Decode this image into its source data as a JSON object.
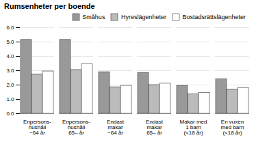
{
  "chart_data": {
    "type": "bar",
    "title": "Rumsenheter per boende",
    "categories": [
      "Enpersons-\nhushåll\n−64 år",
      "Enpersons-\nhushåll\n65– år",
      "Endast\nmakar\n−64 år",
      "Endast\nmakar\n65– år",
      "Makar med\n1 barn\n(<18 år)",
      "En vuxen\nmed barn\n(<18 år)"
    ],
    "series": [
      {
        "name": "Småhus",
        "color": "#999999",
        "values": [
          5.15,
          5.15,
          2.9,
          2.85,
          1.95,
          2.4
        ]
      },
      {
        "name": "Hyreslägenheter",
        "color": "#bbbbbb",
        "values": [
          2.75,
          3.05,
          1.85,
          2.0,
          1.35,
          1.7
        ]
      },
      {
        "name": "Bostadsrättslägenheter",
        "color": "#ffffff",
        "values": [
          2.95,
          3.45,
          1.95,
          2.1,
          1.45,
          1.8
        ]
      }
    ],
    "ylim": [
      0,
      6
    ],
    "yticks": [
      0,
      1,
      2,
      3,
      4,
      5,
      6
    ],
    "grid": true,
    "legend": "upper right"
  }
}
